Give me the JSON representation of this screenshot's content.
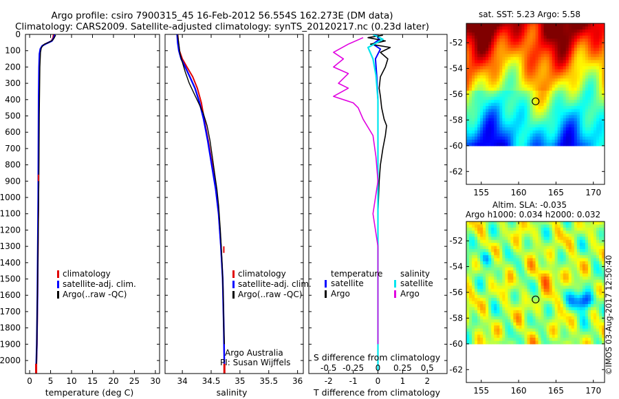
{
  "header": {
    "line1": "Argo profile: csiro 7900315_45 16-Feb-2012 56.554S 162.273E (DM data)",
    "line2": "Climatology: CARS2009. Satellite-adjusted climatology: synTS_20120217.nc (0.23d later)"
  },
  "colors": {
    "climatology": "#e00000",
    "satellite": "#0000ff",
    "argo": "#000000",
    "sal_satellite": "#00e5ee",
    "sal_argo": "#e000e0"
  },
  "credit": {
    "team": "Argo Australia",
    "pi": "PI: Susan Wijffels",
    "stamp": "©IMOS 03-Aug-2017 12:50:40"
  },
  "chart_data": [
    {
      "type": "line",
      "panel": "temperature",
      "xlabel": "temperature (deg C)",
      "xlim": [
        -1,
        31
      ],
      "xticks": [
        "0",
        "5",
        "10",
        "15",
        "20",
        "25",
        "30"
      ],
      "ylim": [
        0,
        2080
      ],
      "yticks": [
        "0",
        "100",
        "200",
        "300",
        "400",
        "500",
        "600",
        "700",
        "800",
        "900",
        "1000",
        "1100",
        "1200",
        "1300",
        "1400",
        "1500",
        "1600",
        "1700",
        "1800",
        "1900",
        "2000"
      ],
      "legend": [
        "climatology",
        "satellite-adj. clim.",
        "Argo(..raw -QC)"
      ],
      "series": [
        {
          "name": "climatology",
          "values": [
            [
              5.7,
              0
            ],
            [
              5.6,
              20
            ],
            [
              5.2,
              40
            ],
            [
              4.0,
              55
            ],
            [
              3.0,
              70
            ],
            [
              2.6,
              90
            ],
            [
              2.4,
              120
            ],
            [
              2.3,
              200
            ],
            [
              2.2,
              400
            ],
            [
              2.15,
              700
            ],
            [
              2.1,
              1000
            ],
            [
              2.0,
              1300
            ],
            [
              1.9,
              1600
            ],
            [
              1.75,
              1900
            ],
            [
              1.6,
              2060
            ]
          ]
        },
        {
          "name": "satellite-adj. clim.",
          "values": [
            [
              6.0,
              0
            ],
            [
              5.8,
              20
            ],
            [
              5.3,
              40
            ],
            [
              4.1,
              55
            ],
            [
              3.0,
              70
            ],
            [
              2.55,
              90
            ],
            [
              2.35,
              120
            ],
            [
              2.25,
              200
            ],
            [
              2.15,
              400
            ],
            [
              2.1,
              700
            ],
            [
              2.05,
              1000
            ],
            [
              1.95,
              1300
            ],
            [
              1.85,
              1600
            ],
            [
              1.7,
              1900
            ],
            [
              1.55,
              2060
            ]
          ]
        },
        {
          "name": "Argo(..raw -QC)",
          "values": [
            [
              6.2,
              5
            ],
            [
              5.9,
              20
            ],
            [
              5.5,
              35
            ],
            [
              4.5,
              50
            ],
            [
              3.5,
              60
            ],
            [
              2.8,
              80
            ],
            [
              2.6,
              110
            ],
            [
              2.45,
              200
            ],
            [
              2.4,
              300
            ],
            [
              2.3,
              500
            ],
            [
              2.25,
              700
            ],
            [
              2.2,
              900
            ],
            [
              2.1,
              1100
            ],
            [
              2.0,
              1300
            ],
            [
              1.9,
              1500
            ],
            [
              1.8,
              1700
            ],
            [
              1.7,
              1900
            ],
            [
              1.6,
              2040
            ]
          ]
        }
      ]
    },
    {
      "type": "line",
      "panel": "salinity",
      "xlabel": "salinity",
      "xlim": [
        33.7,
        36.1
      ],
      "xticks": [
        "34",
        "34.5",
        "35",
        "35.5",
        "36"
      ],
      "ylim": [
        0,
        2080
      ],
      "legend": [
        "climatology",
        "satellite-adj. clim.",
        "Argo(..raw -QC)"
      ],
      "series": [
        {
          "name": "climatology",
          "values": [
            [
              33.92,
              0
            ],
            [
              33.93,
              50
            ],
            [
              33.95,
              100
            ],
            [
              34.0,
              150
            ],
            [
              34.08,
              200
            ],
            [
              34.18,
              260
            ],
            [
              34.26,
              330
            ],
            [
              34.33,
              420
            ],
            [
              34.38,
              520
            ],
            [
              34.45,
              650
            ],
            [
              34.52,
              800
            ],
            [
              34.58,
              950
            ],
            [
              34.63,
              1100
            ],
            [
              34.67,
              1300
            ],
            [
              34.7,
              1500
            ],
            [
              34.72,
              1800
            ],
            [
              34.73,
              2060
            ]
          ]
        },
        {
          "name": "satellite-adj. clim.",
          "values": [
            [
              33.91,
              0
            ],
            [
              33.92,
              50
            ],
            [
              33.94,
              100
            ],
            [
              33.98,
              150
            ],
            [
              34.05,
              200
            ],
            [
              34.13,
              260
            ],
            [
              34.22,
              330
            ],
            [
              34.3,
              420
            ],
            [
              34.37,
              520
            ],
            [
              34.44,
              650
            ],
            [
              34.51,
              800
            ],
            [
              34.58,
              950
            ],
            [
              34.63,
              1100
            ],
            [
              34.67,
              1300
            ],
            [
              34.7,
              1500
            ],
            [
              34.72,
              1800
            ],
            [
              34.73,
              2060
            ]
          ]
        },
        {
          "name": "Argo(..raw -QC)",
          "values": [
            [
              33.92,
              5
            ],
            [
              33.94,
              60
            ],
            [
              33.96,
              120
            ],
            [
              34.0,
              170
            ],
            [
              34.05,
              230
            ],
            [
              34.12,
              300
            ],
            [
              34.2,
              360
            ],
            [
              34.28,
              420
            ],
            [
              34.36,
              480
            ],
            [
              34.43,
              560
            ],
            [
              34.48,
              650
            ],
            [
              34.52,
              750
            ],
            [
              34.56,
              850
            ],
            [
              34.6,
              950
            ],
            [
              34.63,
              1050
            ],
            [
              34.66,
              1200
            ],
            [
              34.69,
              1400
            ],
            [
              34.71,
              1600
            ],
            [
              34.72,
              1800
            ],
            [
              34.73,
              1900
            ]
          ]
        }
      ]
    },
    {
      "type": "line",
      "panel": "difference",
      "xlabel": "T difference from climatology",
      "xlabel2": "S difference from climatology",
      "xlim": [
        -2.8,
        2.8
      ],
      "xticks": [
        "-2",
        "-1",
        "0",
        "1",
        "2"
      ],
      "xticks2": [
        "-0.5",
        "-0.25",
        "0",
        "0.25",
        "0.5"
      ],
      "ylim": [
        0,
        2080
      ],
      "legend_titles": [
        "temperature",
        "salinity"
      ],
      "legend_temperature": [
        "satellite",
        "Argo"
      ],
      "legend_salinity": [
        "satellite",
        "Argo"
      ],
      "series": [
        {
          "name": "T satellite",
          "values": [
            [
              -0.1,
              0
            ],
            [
              0.05,
              30
            ],
            [
              -0.2,
              60
            ],
            [
              0.1,
              90
            ],
            [
              -0.1,
              150
            ],
            [
              -0.05,
              250
            ],
            [
              0.0,
              400
            ],
            [
              0.0,
              700
            ],
            [
              0.0,
              1200
            ],
            [
              0.0,
              2060
            ]
          ]
        },
        {
          "name": "T Argo",
          "values": [
            [
              0.2,
              5
            ],
            [
              -0.4,
              20
            ],
            [
              0.3,
              40
            ],
            [
              -0.3,
              60
            ],
            [
              0.5,
              80
            ],
            [
              0.1,
              110
            ],
            [
              0.4,
              150
            ],
            [
              0.3,
              200
            ],
            [
              0.1,
              260
            ],
            [
              0.05,
              330
            ],
            [
              0.1,
              380
            ],
            [
              0.15,
              450
            ],
            [
              0.25,
              520
            ],
            [
              0.35,
              560
            ],
            [
              0.3,
              620
            ],
            [
              0.2,
              700
            ],
            [
              0.1,
              800
            ],
            [
              0.05,
              900
            ],
            [
              0.0,
              1100
            ],
            [
              0.0,
              2040
            ]
          ]
        },
        {
          "name": "S satellite",
          "values": [
            [
              -0.05,
              0
            ],
            [
              0.05,
              30
            ],
            [
              -0.1,
              80
            ],
            [
              -0.05,
              150
            ],
            [
              -0.02,
              250
            ],
            [
              0.0,
              400
            ],
            [
              0.0,
              2060
            ]
          ]
        },
        {
          "name": "S Argo",
          "values": [
            [
              -0.15,
              20
            ],
            [
              -0.3,
              60
            ],
            [
              -0.45,
              110
            ],
            [
              -0.35,
              150
            ],
            [
              -0.45,
              200
            ],
            [
              -0.3,
              240
            ],
            [
              -0.4,
              300
            ],
            [
              -0.3,
              330
            ],
            [
              -0.45,
              380
            ],
            [
              -0.25,
              420
            ],
            [
              -0.2,
              450
            ],
            [
              -0.15,
              520
            ],
            [
              -0.05,
              620
            ],
            [
              -0.02,
              750
            ],
            [
              0.0,
              900
            ],
            [
              -0.05,
              1100
            ],
            [
              0.0,
              1300
            ],
            [
              0.0,
              1900
            ]
          ]
        }
      ]
    },
    {
      "type": "heatmap",
      "panel": "sst-map",
      "title": "sat. SST: 5.23  Argo: 5.58",
      "xlim": [
        153,
        171.5
      ],
      "ylim": [
        -63,
        -50.5
      ],
      "xticks": [
        155,
        160,
        165,
        170
      ],
      "yticks": [
        -52,
        -54,
        -56,
        -58,
        -60,
        -62
      ],
      "xticklabels": [
        "155",
        "160",
        "165",
        "170"
      ],
      "yticklabels": [
        "-52",
        "-54",
        "-56",
        "-58",
        "-60",
        "-62"
      ],
      "marker": [
        162.273,
        -56.554
      ],
      "data_south_limit": -60
    },
    {
      "type": "heatmap",
      "panel": "sla-map",
      "title": "Altim. SLA: -0.035",
      "subtitle": "Argo h1000: 0.034 h2000: 0.032",
      "xlim": [
        153,
        171.5
      ],
      "ylim": [
        -63,
        -50.5
      ],
      "xticks": [
        155,
        160,
        165,
        170
      ],
      "yticks": [
        -52,
        -54,
        -56,
        -58,
        -60,
        -62
      ],
      "xticklabels": [
        "155",
        "160",
        "165",
        "170"
      ],
      "yticklabels": [
        "-52",
        "-54",
        "-56",
        "-58",
        "-60",
        "-62"
      ],
      "marker": [
        162.273,
        -56.554
      ],
      "data_south_limit": -60
    }
  ]
}
